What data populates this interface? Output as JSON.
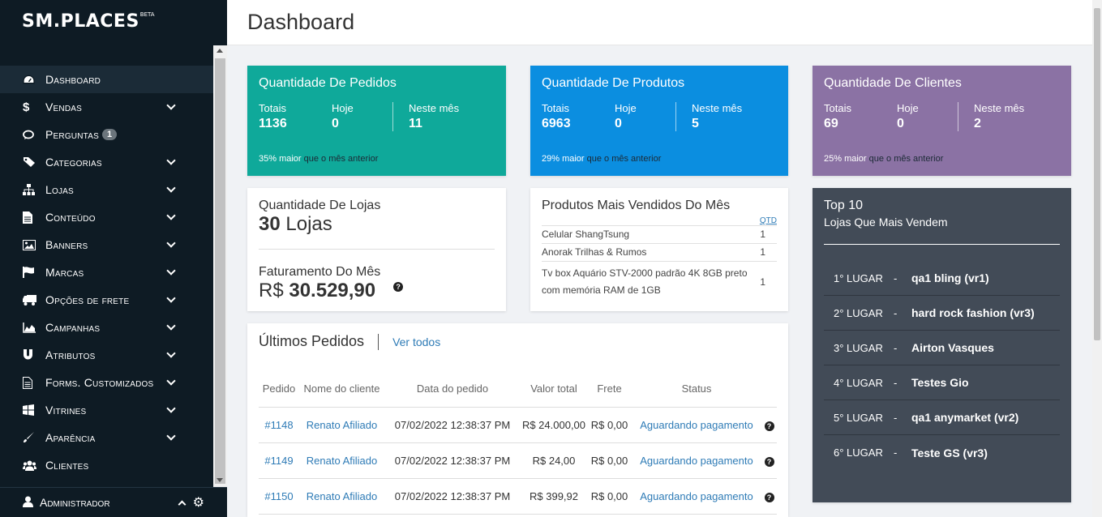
{
  "app": {
    "logo": "SM.PLACES",
    "logo_badge": "BETA"
  },
  "sidebar": {
    "items": [
      {
        "label": "Dashboard",
        "icon": "dashboard-icon",
        "expandable": false
      },
      {
        "label": "Vendas",
        "icon": "dollar-icon",
        "expandable": true
      },
      {
        "label": "Perguntas",
        "icon": "comments-icon",
        "expandable": false,
        "badge": "1"
      },
      {
        "label": "Categorias",
        "icon": "tags-icon",
        "expandable": true
      },
      {
        "label": "Lojas",
        "icon": "sitemap-icon",
        "expandable": true
      },
      {
        "label": "Conteúdo",
        "icon": "file-icon",
        "expandable": true
      },
      {
        "label": "Banners",
        "icon": "image-icon",
        "expandable": true
      },
      {
        "label": "Marcas",
        "icon": "flag-icon",
        "expandable": true
      },
      {
        "label": "Opções de frete",
        "icon": "truck-icon",
        "expandable": true
      },
      {
        "label": "Campanhas",
        "icon": "area-chart-icon",
        "expandable": true
      },
      {
        "label": "Atributos",
        "icon": "magnet-icon",
        "expandable": true
      },
      {
        "label": "Forms. Customizados",
        "icon": "form-icon",
        "expandable": true
      },
      {
        "label": "Vitrines",
        "icon": "windows-icon",
        "expandable": true
      },
      {
        "label": "Aparência",
        "icon": "brush-icon",
        "expandable": true
      },
      {
        "label": "Clientes",
        "icon": "users-icon",
        "expandable": false
      }
    ],
    "user": {
      "label": "Administrador"
    }
  },
  "header": {
    "title": "Dashboard"
  },
  "stats": {
    "pedidos": {
      "title": "Quantidade De Pedidos",
      "totais_label": "Totais",
      "totais": "1136",
      "hoje_label": "Hoje",
      "hoje": "0",
      "mes_label": "Neste mês",
      "mes": "11",
      "foot_pct": "35% maior",
      "foot_rest": "que o mês anterior",
      "color": "#0fa99a"
    },
    "produtos": {
      "title": "Quantidade De Produtos",
      "totais_label": "Totais",
      "totais": "6963",
      "hoje_label": "Hoje",
      "hoje": "0",
      "mes_label": "Neste mês",
      "mes": "5",
      "foot_pct": "29% maior",
      "foot_rest": "que o mês anterior",
      "color": "#0b8ee0"
    },
    "clientes": {
      "title": "Quantidade De Clientes",
      "totais_label": "Totais",
      "totais": "69",
      "hoje_label": "Hoje",
      "hoje": "0",
      "mes_label": "Neste mês",
      "mes": "2",
      "foot_pct": "25% maior",
      "foot_rest": "que o mês anterior",
      "color": "#8b72a4"
    }
  },
  "lojas": {
    "title": "Quantidade De Lojas",
    "count": "30",
    "unit": "Lojas"
  },
  "faturamento": {
    "title": "Faturamento Do Mês",
    "currency": "R$",
    "value": "30.529,90"
  },
  "mais_vendidos": {
    "title": "Produtos Mais Vendidos Do Mês",
    "qty_header": "QTD",
    "rows": [
      {
        "name": "Celular ShangTsung",
        "qty": "1"
      },
      {
        "name": "Anorak Trilhas & Rumos",
        "qty": "1"
      },
      {
        "name": "Tv box Aquário STV-2000 padrão 4K 8GB preto com memória RAM de 1GB",
        "qty": "1"
      }
    ]
  },
  "top10": {
    "title": "Top 10",
    "subtitle": "Lojas Que Mais Vendem",
    "rows": [
      {
        "pos": "1° LUGAR",
        "name": "qa1 bling (vr1)"
      },
      {
        "pos": "2° LUGAR",
        "name": "hard rock fashion (vr3)"
      },
      {
        "pos": "3° LUGAR",
        "name": "Airton Vasques"
      },
      {
        "pos": "4° LUGAR",
        "name": "Testes Gio"
      },
      {
        "pos": "5° LUGAR",
        "name": "qa1 anymarket (vr2)"
      },
      {
        "pos": "6° LUGAR",
        "name": "Teste GS (vr3)"
      }
    ]
  },
  "orders": {
    "title": "Últimos Pedidos",
    "view_all": "Ver todos",
    "headers": [
      "Pedido",
      "Nome do cliente",
      "Data do pedido",
      "Valor total",
      "Frete",
      "Status"
    ],
    "rows": [
      {
        "id": "#1148",
        "client": "Renato Afiliado",
        "date": "07/02/2022 12:38:37 PM",
        "total": "R$ 24.000,00",
        "frete": "R$ 0,00",
        "status": "Aguardando pagamento"
      },
      {
        "id": "#1149",
        "client": "Renato Afiliado",
        "date": "07/02/2022 12:38:37 PM",
        "total": "R$ 24,00",
        "frete": "R$ 0,00",
        "status": "Aguardando pagamento"
      },
      {
        "id": "#1150",
        "client": "Renato Afiliado",
        "date": "07/02/2022 12:38:37 PM",
        "total": "R$ 399,92",
        "frete": "R$ 0,00",
        "status": "Aguardando pagamento"
      }
    ]
  }
}
